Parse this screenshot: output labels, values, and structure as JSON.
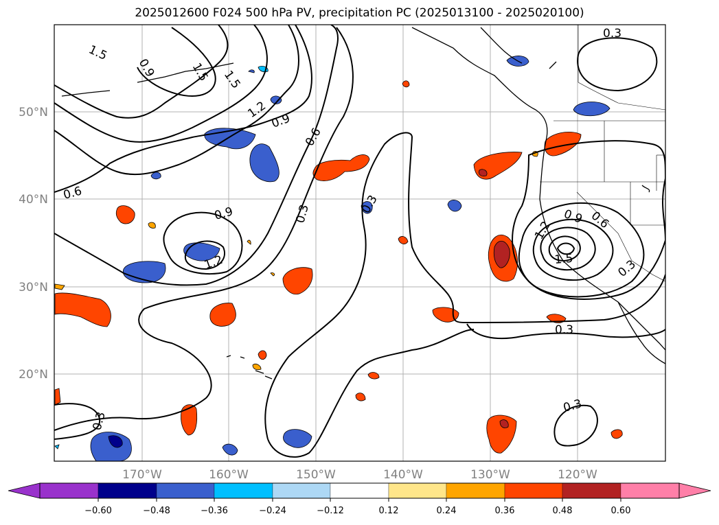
{
  "title": "2025012600 F024 500 hPa PV, precipitation PC (2025013100 - 2025020100)",
  "map": {
    "lon_labels": [
      "170°W",
      "160°W",
      "150°W",
      "140°W",
      "130°W",
      "120°W"
    ],
    "lat_labels": [
      "50°N",
      "40°N",
      "30°N",
      "20°N"
    ],
    "contour_labels": [
      "1.5",
      "0.9",
      "1.5",
      "1.5",
      "1.2",
      "0.9",
      "0.6",
      "0.6",
      "0.9",
      "1.2",
      "0.3",
      "0.3",
      "0.9",
      "0.6",
      "1.2",
      "1.5",
      "0.3",
      "0.3",
      "0.3",
      "0.3"
    ]
  },
  "colorbar": {
    "ticks": [
      "−0.60",
      "−0.48",
      "−0.36",
      "−0.24",
      "−0.12",
      "0.12",
      "0.24",
      "0.36",
      "0.48",
      "0.60"
    ],
    "colors": [
      "#9932cc",
      "#00008b",
      "#3a5fcd",
      "#00bfff",
      "#add8f5",
      "#ffffff",
      "#ffe68a",
      "#ffa500",
      "#ff4500",
      "#b22222",
      "#ff7fa8"
    ]
  }
}
